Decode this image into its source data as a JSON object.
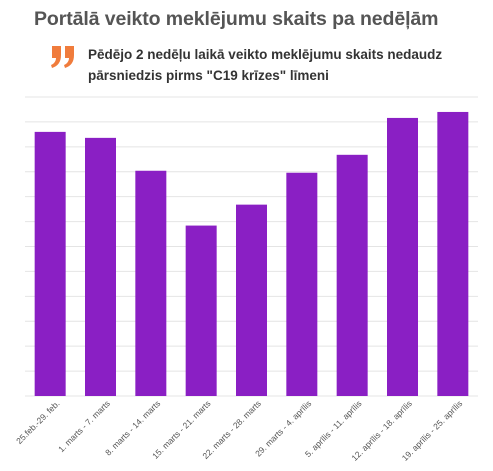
{
  "title": "Portālā veikto meklējumu skaits pa nedēļām",
  "subtitle": "Pēdējo 2 nedēļu laikā veikto meklējumu skaits nedaudz pārsniedzis pirms \"C19 krīzes\" līmeni",
  "quote_icon": "quote-mark-icon",
  "colors": {
    "bar": "#8a1fc4",
    "quote": "#f07c3c",
    "title": "#555555"
  },
  "chart_data": {
    "type": "bar",
    "categories": [
      "25.feb.-29. feb.",
      "1. marts - 7. marts",
      "8. marts - 14. marts",
      "15. marts - 21. marts",
      "22. marts - 28. marts",
      "29. marts - 4. aprīlis",
      "5. aprīlis - 11. aprīlis",
      "12. aprīlis - 18. aprīlis",
      "19. aprīlis - 25. aprīlis"
    ],
    "values": [
      265,
      259,
      226,
      171,
      192,
      224,
      242,
      279,
      285
    ],
    "ylim": [
      0,
      300
    ],
    "grid": true,
    "y_tick_labels_shown": false,
    "legend": "none"
  }
}
